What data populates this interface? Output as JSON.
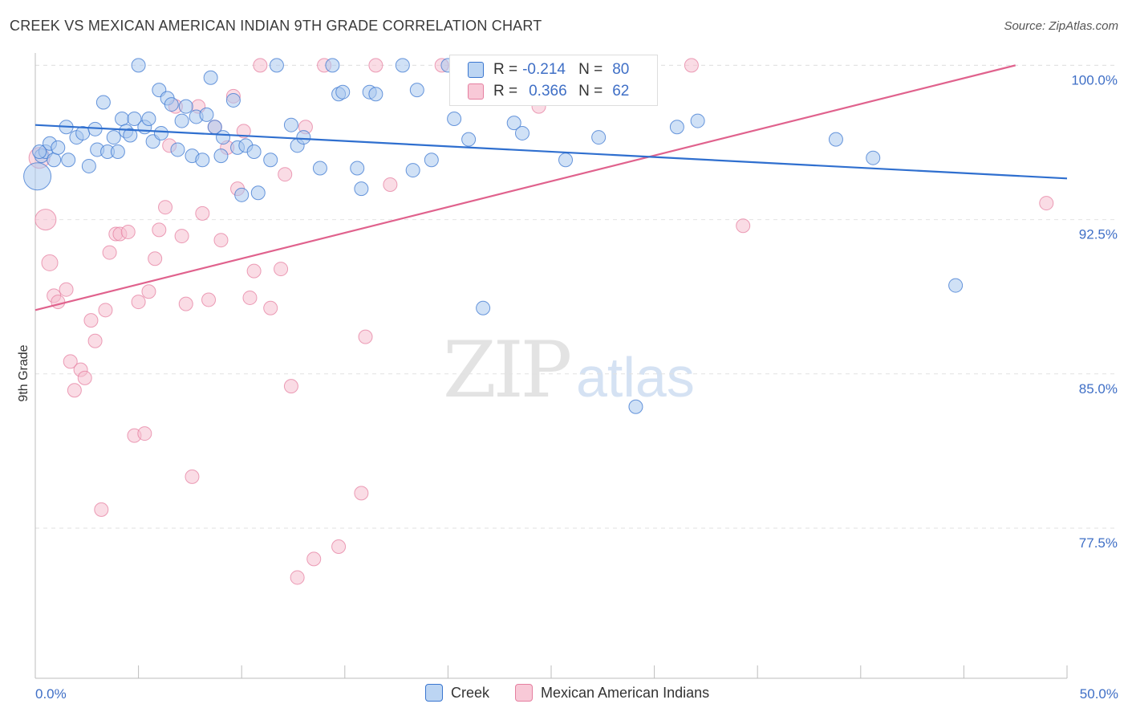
{
  "header": {
    "title": "CREEK VS MEXICAN AMERICAN INDIAN 9TH GRADE CORRELATION CHART",
    "source": "Source: ZipAtlas.com"
  },
  "watermark": {
    "zip": "ZIP",
    "atlas": "atlas"
  },
  "legend": {
    "r_label": "R =",
    "n_label": "N =",
    "series": [
      {
        "r": "-0.214",
        "n": "80"
      },
      {
        "r": "0.366",
        "n": "62"
      }
    ]
  },
  "bottom_legend": [
    "Creek",
    "Mexican American Indians"
  ],
  "colors": {
    "creek_fill": "#a9c8ee",
    "creek_stroke": "#3a76d0",
    "creek_line": "#2f6fcf",
    "mai_fill": "#f6bfd0",
    "mai_stroke": "#e57fa0",
    "mai_line": "#e0628d",
    "tick_text": "#3f6fc6"
  },
  "chart_data": {
    "type": "scatter",
    "title": "CREEK VS MEXICAN AMERICAN INDIAN 9TH GRADE CORRELATION CHART",
    "xlabel": "",
    "ylabel": "9th Grade",
    "xlim": [
      0,
      50
    ],
    "ylim": [
      70.2,
      100.6
    ],
    "x_tick_labels": [
      {
        "value": 0,
        "label": "0.0%"
      },
      {
        "value": 50,
        "label": "50.0%"
      }
    ],
    "y_tick_labels": [
      {
        "value": 100,
        "label": "100.0%"
      },
      {
        "value": 92.5,
        "label": "92.5%"
      },
      {
        "value": 85,
        "label": "85.0%"
      },
      {
        "value": 77.5,
        "label": "77.5%"
      }
    ],
    "grid": true,
    "legend_position": "top-center",
    "series": [
      {
        "name": "Creek",
        "trend": {
          "x": [
            0,
            50
          ],
          "y": [
            97.1,
            94.5
          ]
        },
        "points": [
          [
            0.1,
            94.6
          ],
          [
            0.3,
            95.6
          ],
          [
            0.5,
            95.8
          ],
          [
            0.7,
            96.2
          ],
          [
            0.9,
            95.4
          ],
          [
            1.1,
            96.0
          ],
          [
            1.5,
            97.0
          ],
          [
            1.6,
            95.4
          ],
          [
            2.0,
            96.5
          ],
          [
            2.3,
            96.7
          ],
          [
            2.6,
            95.1
          ],
          [
            2.9,
            96.9
          ],
          [
            3.0,
            95.9
          ],
          [
            3.3,
            98.2
          ],
          [
            3.5,
            95.8
          ],
          [
            3.8,
            96.5
          ],
          [
            4.0,
            95.8
          ],
          [
            4.2,
            97.4
          ],
          [
            4.4,
            96.8
          ],
          [
            4.6,
            96.6
          ],
          [
            4.8,
            97.4
          ],
          [
            5.0,
            100.0
          ],
          [
            5.3,
            97.0
          ],
          [
            5.5,
            97.4
          ],
          [
            5.7,
            96.3
          ],
          [
            6.0,
            98.8
          ],
          [
            6.1,
            96.7
          ],
          [
            6.4,
            98.4
          ],
          [
            6.6,
            98.1
          ],
          [
            6.9,
            95.9
          ],
          [
            7.1,
            97.3
          ],
          [
            7.3,
            98.0
          ],
          [
            7.6,
            95.6
          ],
          [
            7.8,
            97.5
          ],
          [
            8.1,
            95.4
          ],
          [
            8.3,
            97.6
          ],
          [
            8.5,
            99.4
          ],
          [
            8.7,
            97.0
          ],
          [
            9.0,
            95.6
          ],
          [
            9.1,
            96.5
          ],
          [
            9.6,
            98.3
          ],
          [
            9.8,
            96.0
          ],
          [
            10.0,
            93.7
          ],
          [
            10.2,
            96.1
          ],
          [
            10.6,
            95.8
          ],
          [
            10.8,
            93.8
          ],
          [
            11.4,
            95.4
          ],
          [
            11.7,
            100.0
          ],
          [
            12.4,
            97.1
          ],
          [
            12.7,
            96.1
          ],
          [
            13.0,
            96.5
          ],
          [
            13.8,
            95.0
          ],
          [
            14.4,
            100.0
          ],
          [
            14.7,
            98.6
          ],
          [
            14.9,
            98.7
          ],
          [
            15.6,
            95.0
          ],
          [
            15.8,
            94.0
          ],
          [
            16.2,
            98.7
          ],
          [
            16.5,
            98.6
          ],
          [
            17.8,
            100.0
          ],
          [
            18.3,
            94.9
          ],
          [
            18.5,
            98.8
          ],
          [
            19.2,
            95.4
          ],
          [
            20.0,
            100.0
          ],
          [
            20.3,
            97.4
          ],
          [
            21.0,
            96.4
          ],
          [
            21.7,
            88.2
          ],
          [
            22.0,
            100.0
          ],
          [
            23.2,
            97.2
          ],
          [
            23.6,
            96.7
          ],
          [
            25.0,
            100.0
          ],
          [
            25.7,
            95.4
          ],
          [
            27.3,
            96.5
          ],
          [
            29.1,
            83.4
          ],
          [
            31.1,
            97.0
          ],
          [
            32.1,
            97.3
          ],
          [
            38.8,
            96.4
          ],
          [
            40.6,
            95.5
          ],
          [
            44.6,
            89.3
          ],
          [
            0.2,
            95.8
          ]
        ]
      },
      {
        "name": "Mexican American Indians",
        "trend": {
          "x": [
            0,
            47.5
          ],
          "y": [
            88.1,
            100.0
          ]
        },
        "points": [
          [
            0.2,
            95.5
          ],
          [
            0.5,
            92.5
          ],
          [
            0.7,
            90.4
          ],
          [
            0.9,
            88.8
          ],
          [
            1.1,
            88.5
          ],
          [
            1.5,
            89.1
          ],
          [
            1.7,
            85.6
          ],
          [
            1.9,
            84.2
          ],
          [
            2.2,
            85.2
          ],
          [
            2.4,
            84.8
          ],
          [
            2.7,
            87.6
          ],
          [
            2.9,
            86.6
          ],
          [
            3.2,
            78.4
          ],
          [
            3.4,
            88.1
          ],
          [
            3.6,
            90.9
          ],
          [
            3.9,
            91.8
          ],
          [
            4.1,
            91.8
          ],
          [
            4.5,
            91.9
          ],
          [
            4.8,
            82.0
          ],
          [
            5.0,
            88.5
          ],
          [
            5.3,
            82.1
          ],
          [
            5.5,
            89.0
          ],
          [
            5.8,
            90.6
          ],
          [
            6.0,
            92.0
          ],
          [
            6.3,
            93.1
          ],
          [
            6.5,
            96.1
          ],
          [
            6.8,
            98.0
          ],
          [
            7.1,
            91.7
          ],
          [
            7.3,
            88.4
          ],
          [
            7.6,
            80.0
          ],
          [
            7.9,
            98.0
          ],
          [
            8.1,
            92.8
          ],
          [
            8.4,
            88.6
          ],
          [
            8.7,
            97.0
          ],
          [
            9.0,
            91.5
          ],
          [
            9.3,
            96.0
          ],
          [
            9.6,
            98.5
          ],
          [
            9.8,
            94.0
          ],
          [
            10.1,
            96.8
          ],
          [
            10.4,
            88.7
          ],
          [
            10.6,
            90.0
          ],
          [
            10.9,
            100.0
          ],
          [
            11.4,
            88.2
          ],
          [
            11.9,
            90.1
          ],
          [
            12.1,
            94.7
          ],
          [
            12.4,
            84.4
          ],
          [
            12.7,
            75.1
          ],
          [
            13.1,
            97.0
          ],
          [
            13.5,
            76.0
          ],
          [
            14.0,
            100.0
          ],
          [
            14.7,
            76.6
          ],
          [
            15.8,
            79.2
          ],
          [
            16.0,
            86.8
          ],
          [
            16.5,
            100.0
          ],
          [
            17.2,
            94.2
          ],
          [
            19.7,
            100.0
          ],
          [
            22.0,
            100.0
          ],
          [
            24.4,
            98.0
          ],
          [
            27.3,
            100.0
          ],
          [
            31.8,
            100.0
          ],
          [
            34.3,
            92.2
          ],
          [
            49.0,
            93.3
          ]
        ]
      }
    ]
  }
}
